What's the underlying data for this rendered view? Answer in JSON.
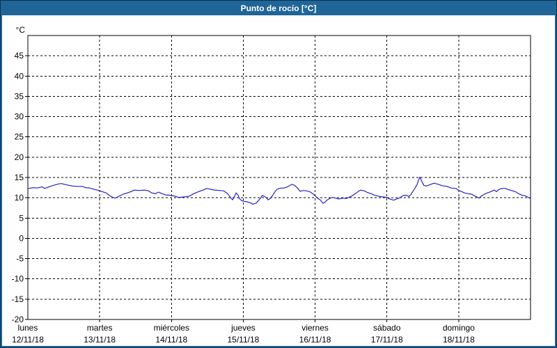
{
  "window": {
    "title": "Punto de rocío [°C]"
  },
  "colors": {
    "frame": "#1f6597",
    "frame_dark": "#0d3050",
    "title_text": "#ffffff",
    "plot_bg": "#ffffff",
    "plot_border": "#000000",
    "grid": "#000000",
    "label_text": "#000000",
    "series": "#2323c3"
  },
  "chart_data": {
    "type": "line",
    "title": "Punto de rocío [°C]",
    "y_unit_label": "°C",
    "xlabel": "",
    "ylabel": "°C",
    "ylim": [
      -20,
      50
    ],
    "y_ticks": [
      45,
      40,
      35,
      30,
      25,
      20,
      15,
      10,
      5,
      0,
      -5,
      -10,
      -15,
      -20
    ],
    "x_range_hours": [
      0,
      168
    ],
    "grid": "dashed",
    "legend": "none",
    "x_days": [
      {
        "name": "lunes",
        "date": "12/11/18",
        "hour": 0
      },
      {
        "name": "martes",
        "date": "13/11/18",
        "hour": 24
      },
      {
        "name": "miércoles",
        "date": "14/11/18",
        "hour": 48
      },
      {
        "name": "jueves",
        "date": "15/11/18",
        "hour": 72
      },
      {
        "name": "viernes",
        "date": "16/11/18",
        "hour": 96
      },
      {
        "name": "sábado",
        "date": "17/11/18",
        "hour": 120
      },
      {
        "name": "domingo",
        "date": "18/11/18",
        "hour": 144
      }
    ],
    "series": [
      {
        "name": "punto_de_rocio",
        "color": "#2323c3",
        "points": [
          [
            0,
            12.2
          ],
          [
            0.9,
            12.4
          ],
          [
            1.9,
            12.5
          ],
          [
            2.8,
            12.4
          ],
          [
            3.7,
            12.5
          ],
          [
            4.7,
            12.7
          ],
          [
            5.6,
            12.3
          ],
          [
            6.5,
            12.5
          ],
          [
            7.4,
            12.8
          ],
          [
            8.8,
            13.1
          ],
          [
            10.2,
            13.4
          ],
          [
            11.2,
            13.5
          ],
          [
            12.3,
            13.3
          ],
          [
            13.5,
            13.1
          ],
          [
            14.9,
            12.9
          ],
          [
            16.5,
            12.8
          ],
          [
            18.2,
            12.8
          ],
          [
            19.3,
            12.5
          ],
          [
            20.7,
            12.4
          ],
          [
            22.1,
            12.1
          ],
          [
            23.7,
            11.8
          ],
          [
            24.9,
            11.5
          ],
          [
            26.1,
            11.2
          ],
          [
            27.2,
            10.6
          ],
          [
            28.4,
            10.1
          ],
          [
            29.1,
            9.9
          ],
          [
            30.3,
            10.3
          ],
          [
            31.9,
            10.9
          ],
          [
            33.3,
            11.2
          ],
          [
            34.4,
            11.5
          ],
          [
            35.6,
            11.9
          ],
          [
            37.2,
            11.8
          ],
          [
            39.1,
            11.9
          ],
          [
            40.3,
            11.7
          ],
          [
            41.4,
            11.2
          ],
          [
            42.6,
            11.0
          ],
          [
            43.7,
            11.4
          ],
          [
            44.9,
            11.0
          ],
          [
            46.1,
            10.7
          ],
          [
            47.7,
            10.6
          ],
          [
            49.1,
            10.4
          ],
          [
            50.5,
            10.1
          ],
          [
            52.1,
            10.2
          ],
          [
            54.0,
            10.4
          ],
          [
            55.4,
            11.0
          ],
          [
            57.0,
            11.5
          ],
          [
            58.6,
            11.9
          ],
          [
            59.8,
            12.3
          ],
          [
            61.0,
            12.1
          ],
          [
            62.4,
            11.9
          ],
          [
            64.0,
            11.8
          ],
          [
            65.4,
            11.7
          ],
          [
            66.8,
            11.0
          ],
          [
            67.7,
            10.1
          ],
          [
            68.4,
            9.5
          ],
          [
            69.1,
            10.4
          ],
          [
            69.6,
            11.2
          ],
          [
            70.3,
            10.6
          ],
          [
            70.7,
            9.8
          ],
          [
            71.4,
            9.3
          ],
          [
            72.4,
            9.1
          ],
          [
            73.3,
            9.0
          ],
          [
            74.5,
            8.7
          ],
          [
            75.2,
            8.4
          ],
          [
            76.3,
            8.7
          ],
          [
            77.3,
            9.5
          ],
          [
            78.0,
            10.2
          ],
          [
            78.4,
            10.6
          ],
          [
            79.6,
            10.1
          ],
          [
            80.3,
            9.5
          ],
          [
            81.0,
            9.8
          ],
          [
            81.9,
            10.7
          ],
          [
            82.6,
            11.5
          ],
          [
            83.3,
            12.1
          ],
          [
            84.5,
            12.4
          ],
          [
            85.6,
            12.4
          ],
          [
            86.8,
            12.7
          ],
          [
            88.2,
            13.3
          ],
          [
            89.1,
            13.1
          ],
          [
            90.1,
            12.4
          ],
          [
            91.0,
            11.6
          ],
          [
            92.2,
            11.8
          ],
          [
            93.1,
            11.7
          ],
          [
            94.2,
            11.5
          ],
          [
            95.4,
            10.9
          ],
          [
            96.1,
            10.4
          ],
          [
            97.0,
            9.8
          ],
          [
            97.7,
            9.5
          ],
          [
            98.7,
            8.6
          ],
          [
            99.4,
            9.0
          ],
          [
            100.1,
            9.5
          ],
          [
            101.0,
            9.9
          ],
          [
            101.9,
            10.1
          ],
          [
            102.8,
            9.9
          ],
          [
            104.0,
            9.7
          ],
          [
            105.2,
            9.9
          ],
          [
            106.3,
            9.8
          ],
          [
            107.3,
            10.1
          ],
          [
            108.2,
            10.4
          ],
          [
            109.4,
            11.0
          ],
          [
            110.5,
            11.6
          ],
          [
            111.2,
            11.9
          ],
          [
            112.4,
            11.7
          ],
          [
            113.5,
            11.3
          ],
          [
            114.7,
            11.0
          ],
          [
            115.6,
            10.7
          ],
          [
            116.6,
            10.5
          ],
          [
            117.7,
            10.3
          ],
          [
            118.9,
            10.2
          ],
          [
            119.8,
            10.1
          ],
          [
            121.0,
            9.7
          ],
          [
            122.2,
            9.4
          ],
          [
            123.3,
            9.7
          ],
          [
            124.5,
            10.1
          ],
          [
            125.6,
            10.6
          ],
          [
            126.6,
            10.6
          ],
          [
            127.3,
            10.3
          ],
          [
            128.0,
            10.8
          ],
          [
            128.7,
            11.6
          ],
          [
            129.4,
            12.4
          ],
          [
            130.1,
            13.3
          ],
          [
            130.5,
            14.2
          ],
          [
            131.0,
            15.1
          ],
          [
            131.7,
            14.0
          ],
          [
            132.4,
            13.0
          ],
          [
            133.1,
            12.9
          ],
          [
            134.0,
            13.1
          ],
          [
            135.0,
            13.4
          ],
          [
            135.7,
            13.6
          ],
          [
            136.8,
            13.4
          ],
          [
            138.4,
            13.0
          ],
          [
            140.1,
            12.8
          ],
          [
            141.5,
            12.4
          ],
          [
            143.1,
            12.3
          ],
          [
            143.8,
            11.9
          ],
          [
            144.7,
            11.6
          ],
          [
            145.9,
            11.2
          ],
          [
            147.0,
            11.0
          ],
          [
            148.2,
            10.9
          ],
          [
            149.2,
            10.5
          ],
          [
            150.1,
            10.2
          ],
          [
            150.8,
            9.9
          ],
          [
            151.5,
            10.4
          ],
          [
            152.4,
            10.8
          ],
          [
            153.6,
            11.2
          ],
          [
            154.7,
            11.5
          ],
          [
            155.9,
            11.9
          ],
          [
            156.6,
            11.5
          ],
          [
            157.5,
            12.1
          ],
          [
            158.5,
            12.3
          ],
          [
            159.6,
            12.3
          ],
          [
            160.6,
            12.0
          ],
          [
            161.7,
            11.8
          ],
          [
            162.9,
            11.5
          ],
          [
            164.0,
            11.0
          ],
          [
            165.2,
            10.6
          ],
          [
            166.1,
            10.5
          ],
          [
            167.0,
            10.2
          ],
          [
            168.0,
            9.8
          ]
        ]
      }
    ]
  }
}
